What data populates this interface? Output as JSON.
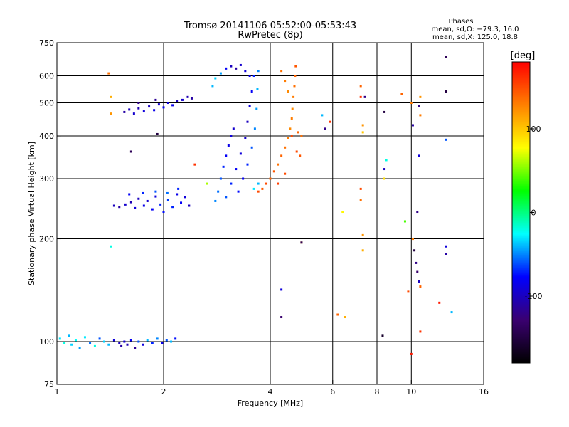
{
  "chart_data": {
    "type": "scatter",
    "title": "Tromsø 20141106 05:52:00-05:53:43",
    "subtitle": "RwPretec (8p)",
    "xlabel": "Frequency [MHz]",
    "ylabel": "Stationary phase Virtual Height [km]",
    "x_scale": "log",
    "y_scale": "log",
    "xlim": [
      1,
      16
    ],
    "ylim": [
      75,
      750
    ],
    "x_ticks": [
      1,
      2,
      4,
      6,
      8,
      10,
      16
    ],
    "y_ticks": [
      75,
      100,
      200,
      300,
      400,
      500,
      600,
      750
    ],
    "grid_x": [
      2,
      4,
      6,
      8,
      10
    ],
    "grid_y": [
      100,
      200,
      300,
      400,
      500,
      600
    ],
    "grid": true,
    "stats": {
      "heading": "Phases",
      "line1": "mean, sd,O: −79.3, 16.0",
      "line2": "mean, sd,X: 125.0, 18.8"
    },
    "colorbar": {
      "label": "[deg]",
      "ticks": [
        100,
        0,
        -100
      ],
      "range": [
        -180,
        180
      ],
      "colors": [
        "#000000",
        "#3a0070",
        "#0000ff",
        "#00ffff",
        "#00ff00",
        "#ffff00",
        "#ff8000",
        "#ff0000"
      ]
    },
    "points": [
      {
        "f": 1.02,
        "h": 102,
        "p": -30
      },
      {
        "f": 1.05,
        "h": 99,
        "p": -20
      },
      {
        "f": 1.08,
        "h": 104,
        "p": -40
      },
      {
        "f": 1.1,
        "h": 98,
        "p": -35
      },
      {
        "f": 1.13,
        "h": 101,
        "p": -25
      },
      {
        "f": 1.16,
        "h": 96,
        "p": -45
      },
      {
        "f": 1.2,
        "h": 103,
        "p": -30
      },
      {
        "f": 1.24,
        "h": 99,
        "p": -55
      },
      {
        "f": 1.28,
        "h": 97,
        "p": -20
      },
      {
        "f": 1.32,
        "h": 102,
        "p": -60
      },
      {
        "f": 1.36,
        "h": 100,
        "p": -35
      },
      {
        "f": 1.4,
        "h": 98,
        "p": -40
      },
      {
        "f": 1.45,
        "h": 101,
        "p": -90
      },
      {
        "f": 1.5,
        "h": 99,
        "p": -100
      },
      {
        "f": 1.52,
        "h": 97,
        "p": -110
      },
      {
        "f": 1.55,
        "h": 100,
        "p": -95
      },
      {
        "f": 1.58,
        "h": 98,
        "p": -105
      },
      {
        "f": 1.62,
        "h": 101,
        "p": -80
      },
      {
        "f": 1.66,
        "h": 96,
        "p": -115
      },
      {
        "f": 1.7,
        "h": 100,
        "p": -60
      },
      {
        "f": 1.75,
        "h": 98,
        "p": -90
      },
      {
        "f": 1.8,
        "h": 101,
        "p": -40
      },
      {
        "f": 1.86,
        "h": 99,
        "p": -70
      },
      {
        "f": 1.92,
        "h": 102,
        "p": -50
      },
      {
        "f": 1.98,
        "h": 99,
        "p": -85
      },
      {
        "f": 2.04,
        "h": 101,
        "p": -60
      },
      {
        "f": 2.1,
        "h": 100,
        "p": -40
      },
      {
        "f": 2.16,
        "h": 102,
        "p": -75
      },
      {
        "f": 1.45,
        "h": 250,
        "p": -100
      },
      {
        "f": 1.5,
        "h": 248,
        "p": -110
      },
      {
        "f": 1.56,
        "h": 252,
        "p": -95
      },
      {
        "f": 1.62,
        "h": 256,
        "p": -105
      },
      {
        "f": 1.66,
        "h": 246,
        "p": -90
      },
      {
        "f": 1.7,
        "h": 262,
        "p": -100
      },
      {
        "f": 1.76,
        "h": 250,
        "p": -85
      },
      {
        "f": 1.8,
        "h": 258,
        "p": -95
      },
      {
        "f": 1.86,
        "h": 244,
        "p": -80
      },
      {
        "f": 1.9,
        "h": 266,
        "p": -90
      },
      {
        "f": 1.96,
        "h": 252,
        "p": -70
      },
      {
        "f": 2.0,
        "h": 240,
        "p": -75
      },
      {
        "f": 2.06,
        "h": 260,
        "p": -65
      },
      {
        "f": 2.12,
        "h": 248,
        "p": -70
      },
      {
        "f": 2.18,
        "h": 270,
        "p": -85
      },
      {
        "f": 2.24,
        "h": 255,
        "p": -80
      },
      {
        "f": 2.3,
        "h": 265,
        "p": -90
      },
      {
        "f": 2.36,
        "h": 250,
        "p": -100
      },
      {
        "f": 1.6,
        "h": 270,
        "p": -80
      },
      {
        "f": 1.75,
        "h": 272,
        "p": -70
      },
      {
        "f": 1.9,
        "h": 275,
        "p": -60
      },
      {
        "f": 2.05,
        "h": 272,
        "p": -55
      },
      {
        "f": 2.2,
        "h": 280,
        "p": -70
      },
      {
        "f": 1.55,
        "h": 470,
        "p": -110
      },
      {
        "f": 1.6,
        "h": 478,
        "p": -100
      },
      {
        "f": 1.65,
        "h": 465,
        "p": -95
      },
      {
        "f": 1.7,
        "h": 482,
        "p": -105
      },
      {
        "f": 1.76,
        "h": 472,
        "p": -90
      },
      {
        "f": 1.82,
        "h": 488,
        "p": -100
      },
      {
        "f": 1.88,
        "h": 476,
        "p": -85
      },
      {
        "f": 1.94,
        "h": 495,
        "p": -95
      },
      {
        "f": 2.0,
        "h": 485,
        "p": -80
      },
      {
        "f": 2.06,
        "h": 500,
        "p": -90
      },
      {
        "f": 2.12,
        "h": 492,
        "p": -85
      },
      {
        "f": 2.18,
        "h": 505,
        "p": -100
      },
      {
        "f": 2.26,
        "h": 510,
        "p": -95
      },
      {
        "f": 2.34,
        "h": 520,
        "p": -105
      },
      {
        "f": 2.4,
        "h": 515,
        "p": -110
      },
      {
        "f": 1.7,
        "h": 500,
        "p": -120
      },
      {
        "f": 1.9,
        "h": 510,
        "p": -115
      },
      {
        "f": 2.8,
        "h": 258,
        "p": -50
      },
      {
        "f": 2.85,
        "h": 275,
        "p": -55
      },
      {
        "f": 2.9,
        "h": 300,
        "p": -60
      },
      {
        "f": 2.95,
        "h": 325,
        "p": -70
      },
      {
        "f": 3.0,
        "h": 350,
        "p": -80
      },
      {
        "f": 3.05,
        "h": 375,
        "p": -85
      },
      {
        "f": 3.1,
        "h": 400,
        "p": -90
      },
      {
        "f": 3.15,
        "h": 420,
        "p": -95
      },
      {
        "f": 3.0,
        "h": 265,
        "p": -60
      },
      {
        "f": 3.1,
        "h": 290,
        "p": -70
      },
      {
        "f": 3.2,
        "h": 320,
        "p": -80
      },
      {
        "f": 3.3,
        "h": 355,
        "p": -90
      },
      {
        "f": 3.4,
        "h": 395,
        "p": -95
      },
      {
        "f": 3.45,
        "h": 440,
        "p": -100
      },
      {
        "f": 3.5,
        "h": 490,
        "p": -90
      },
      {
        "f": 3.55,
        "h": 540,
        "p": -80
      },
      {
        "f": 3.6,
        "h": 600,
        "p": -70
      },
      {
        "f": 3.25,
        "h": 275,
        "p": -75
      },
      {
        "f": 3.35,
        "h": 300,
        "p": -80
      },
      {
        "f": 3.45,
        "h": 330,
        "p": -70
      },
      {
        "f": 3.55,
        "h": 370,
        "p": -60
      },
      {
        "f": 3.62,
        "h": 420,
        "p": -50
      },
      {
        "f": 3.66,
        "h": 480,
        "p": -45
      },
      {
        "f": 3.68,
        "h": 550,
        "p": -40
      },
      {
        "f": 3.7,
        "h": 620,
        "p": -50
      },
      {
        "f": 2.75,
        "h": 560,
        "p": -40
      },
      {
        "f": 2.8,
        "h": 590,
        "p": -35
      },
      {
        "f": 2.9,
        "h": 610,
        "p": -45
      },
      {
        "f": 3.0,
        "h": 630,
        "p": -80
      },
      {
        "f": 3.1,
        "h": 640,
        "p": -100
      },
      {
        "f": 3.2,
        "h": 630,
        "p": -110
      },
      {
        "f": 3.3,
        "h": 645,
        "p": -95
      },
      {
        "f": 3.4,
        "h": 620,
        "p": -90
      },
      {
        "f": 3.5,
        "h": 600,
        "p": -85
      },
      {
        "f": 3.6,
        "h": 280,
        "p": -30
      },
      {
        "f": 3.7,
        "h": 290,
        "p": -40
      },
      {
        "f": 3.7,
        "h": 275,
        "p": 150
      },
      {
        "f": 3.8,
        "h": 280,
        "p": 145
      },
      {
        "f": 3.9,
        "h": 290,
        "p": 150
      },
      {
        "f": 4.0,
        "h": 300,
        "p": 140
      },
      {
        "f": 4.1,
        "h": 315,
        "p": 145
      },
      {
        "f": 4.2,
        "h": 330,
        "p": 135
      },
      {
        "f": 4.3,
        "h": 350,
        "p": 140
      },
      {
        "f": 4.4,
        "h": 370,
        "p": 135
      },
      {
        "f": 4.5,
        "h": 395,
        "p": 130
      },
      {
        "f": 4.55,
        "h": 420,
        "p": 125
      },
      {
        "f": 4.6,
        "h": 450,
        "p": 130
      },
      {
        "f": 4.62,
        "h": 480,
        "p": 125
      },
      {
        "f": 4.65,
        "h": 520,
        "p": 130
      },
      {
        "f": 4.68,
        "h": 560,
        "p": 135
      },
      {
        "f": 4.7,
        "h": 600,
        "p": 140
      },
      {
        "f": 4.72,
        "h": 640,
        "p": 145
      },
      {
        "f": 4.3,
        "h": 620,
        "p": 135
      },
      {
        "f": 4.4,
        "h": 580,
        "p": 130
      },
      {
        "f": 4.5,
        "h": 540,
        "p": 125
      },
      {
        "f": 4.6,
        "h": 400,
        "p": 150
      },
      {
        "f": 4.8,
        "h": 410,
        "p": 140
      },
      {
        "f": 4.9,
        "h": 400,
        "p": 135
      },
      {
        "f": 4.75,
        "h": 360,
        "p": 150
      },
      {
        "f": 4.85,
        "h": 350,
        "p": 145
      },
      {
        "f": 4.2,
        "h": 290,
        "p": 155
      },
      {
        "f": 4.4,
        "h": 310,
        "p": 150
      },
      {
        "f": 1.4,
        "h": 610,
        "p": 135
      },
      {
        "f": 1.42,
        "h": 520,
        "p": 110
      },
      {
        "f": 1.42,
        "h": 465,
        "p": 120
      },
      {
        "f": 1.62,
        "h": 360,
        "p": -140
      },
      {
        "f": 1.92,
        "h": 405,
        "p": -150
      },
      {
        "f": 1.42,
        "h": 190,
        "p": -20
      },
      {
        "f": 2.45,
        "h": 330,
        "p": 160
      },
      {
        "f": 2.65,
        "h": 290,
        "p": 60
      },
      {
        "f": 4.3,
        "h": 142,
        "p": -90
      },
      {
        "f": 4.3,
        "h": 118,
        "p": -130
      },
      {
        "f": 4.9,
        "h": 195,
        "p": 110
      },
      {
        "f": 4.9,
        "h": 195,
        "p": -140
      },
      {
        "f": 5.6,
        "h": 460,
        "p": -40
      },
      {
        "f": 5.7,
        "h": 420,
        "p": -120
      },
      {
        "f": 5.9,
        "h": 440,
        "p": 160
      },
      {
        "f": 6.2,
        "h": 120,
        "p": 140
      },
      {
        "f": 6.4,
        "h": 240,
        "p": 80
      },
      {
        "f": 6.5,
        "h": 118,
        "p": 110
      },
      {
        "f": 7.2,
        "h": 560,
        "p": 140
      },
      {
        "f": 7.2,
        "h": 520,
        "p": 160
      },
      {
        "f": 7.3,
        "h": 430,
        "p": 120
      },
      {
        "f": 7.3,
        "h": 410,
        "p": 100
      },
      {
        "f": 7.2,
        "h": 280,
        "p": 150
      },
      {
        "f": 7.2,
        "h": 260,
        "p": 135
      },
      {
        "f": 7.3,
        "h": 205,
        "p": 120
      },
      {
        "f": 7.3,
        "h": 185,
        "p": 110
      },
      {
        "f": 7.4,
        "h": 520,
        "p": -120
      },
      {
        "f": 8.4,
        "h": 470,
        "p": -150
      },
      {
        "f": 8.4,
        "h": 320,
        "p": -100
      },
      {
        "f": 8.5,
        "h": 340,
        "p": -20
      },
      {
        "f": 8.4,
        "h": 300,
        "p": 90
      },
      {
        "f": 8.3,
        "h": 104,
        "p": -160
      },
      {
        "f": 9.4,
        "h": 530,
        "p": 140
      },
      {
        "f": 9.6,
        "h": 225,
        "p": 40
      },
      {
        "f": 10.0,
        "h": 500,
        "p": 130
      },
      {
        "f": 10.1,
        "h": 430,
        "p": -110
      },
      {
        "f": 10.1,
        "h": 200,
        "p": 140
      },
      {
        "f": 10.2,
        "h": 185,
        "p": -150
      },
      {
        "f": 10.3,
        "h": 170,
        "p": -120
      },
      {
        "f": 10.4,
        "h": 160,
        "p": -130
      },
      {
        "f": 10.5,
        "h": 150,
        "p": -100
      },
      {
        "f": 10.6,
        "h": 145,
        "p": 140
      },
      {
        "f": 10.0,
        "h": 92,
        "p": 170
      },
      {
        "f": 10.6,
        "h": 107,
        "p": 160
      },
      {
        "f": 10.5,
        "h": 490,
        "p": -120
      },
      {
        "f": 10.6,
        "h": 520,
        "p": 120
      },
      {
        "f": 10.6,
        "h": 460,
        "p": 130
      },
      {
        "f": 10.5,
        "h": 350,
        "p": -90
      },
      {
        "f": 10.4,
        "h": 240,
        "p": -120
      },
      {
        "f": 12.5,
        "h": 680,
        "p": -140
      },
      {
        "f": 12.5,
        "h": 540,
        "p": -150
      },
      {
        "f": 12.5,
        "h": 390,
        "p": -60
      },
      {
        "f": 12.5,
        "h": 190,
        "p": -90
      },
      {
        "f": 12.5,
        "h": 180,
        "p": -110
      },
      {
        "f": 12.0,
        "h": 130,
        "p": 170
      },
      {
        "f": 13.0,
        "h": 122,
        "p": -40
      },
      {
        "f": 10.1,
        "h": 200,
        "p": 130
      },
      {
        "f": 9.8,
        "h": 140,
        "p": 150
      }
    ]
  }
}
